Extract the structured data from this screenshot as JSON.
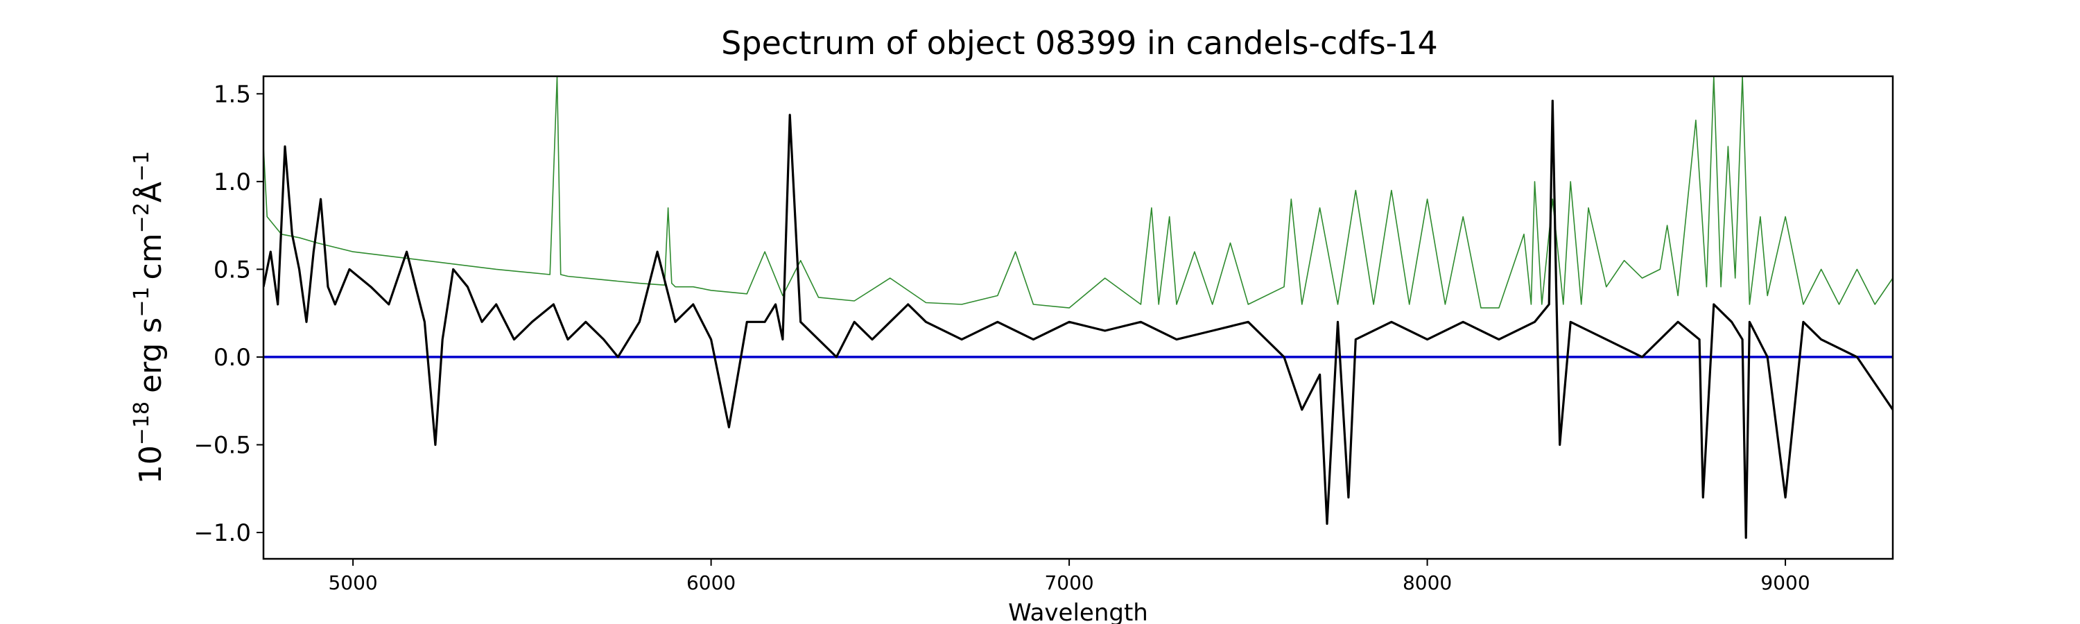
{
  "chart_data": {
    "type": "line",
    "title": "Spectrum of object 08399 in candels-cdfs-14",
    "xlabel": "Wavelength",
    "ylabel_base": "10",
    "ylabel_exp": "−18",
    "ylabel_parts": [
      "erg s",
      "−1",
      "cm",
      "−2",
      "Å",
      "−1"
    ],
    "xlim": [
      4750,
      9300
    ],
    "ylim": [
      -1.15,
      1.6
    ],
    "grid": false,
    "x_ticks": [
      5000,
      6000,
      7000,
      8000,
      9000
    ],
    "x_tick_labels": [
      "5000",
      "6000",
      "7000",
      "8000",
      "9000"
    ],
    "y_ticks": [
      -1.0,
      -0.5,
      0.0,
      0.5,
      1.0,
      1.5
    ],
    "y_tick_labels": [
      "−1.0",
      "−0.5",
      "0.0",
      "0.5",
      "1.0",
      "1.5"
    ],
    "series": [
      {
        "role": "flux",
        "color": "#000000",
        "x": [
          4750,
          4770,
          4790,
          4810,
          4830,
          4850,
          4870,
          4890,
          4910,
          4930,
          4950,
          4990,
          5050,
          5100,
          5150,
          5200,
          5230,
          5250,
          5280,
          5320,
          5360,
          5400,
          5450,
          5500,
          5560,
          5600,
          5650,
          5700,
          5740,
          5800,
          5850,
          5900,
          5950,
          6000,
          6050,
          6100,
          6150,
          6180,
          6200,
          6220,
          6250,
          6300,
          6350,
          6400,
          6450,
          6500,
          6550,
          6600,
          6700,
          6800,
          6900,
          7000,
          7100,
          7200,
          7300,
          7400,
          7500,
          7600,
          7650,
          7700,
          7720,
          7750,
          7780,
          7800,
          7900,
          8000,
          8100,
          8200,
          8300,
          8340,
          8350,
          8360,
          8370,
          8400,
          8500,
          8600,
          8700,
          8760,
          8770,
          8800,
          8850,
          8880,
          8890,
          8900,
          8950,
          9000,
          9050,
          9100,
          9200,
          9300
        ],
        "y": [
          0.4,
          0.6,
          0.3,
          1.2,
          0.7,
          0.5,
          0.2,
          0.6,
          0.9,
          0.4,
          0.3,
          0.5,
          0.4,
          0.3,
          0.6,
          0.2,
          -0.5,
          0.1,
          0.5,
          0.4,
          0.2,
          0.3,
          0.1,
          0.2,
          0.3,
          0.1,
          0.2,
          0.1,
          0.0,
          0.2,
          0.6,
          0.2,
          0.3,
          0.1,
          -0.4,
          0.2,
          0.2,
          0.3,
          0.1,
          1.38,
          0.2,
          0.1,
          0.0,
          0.2,
          0.1,
          0.2,
          0.3,
          0.2,
          0.1,
          0.2,
          0.1,
          0.2,
          0.15,
          0.2,
          0.1,
          0.15,
          0.2,
          0.0,
          -0.3,
          -0.1,
          -0.95,
          0.2,
          -0.8,
          0.1,
          0.2,
          0.1,
          0.2,
          0.1,
          0.2,
          0.3,
          1.46,
          0.4,
          -0.5,
          0.2,
          0.1,
          0.0,
          0.2,
          0.1,
          -0.8,
          0.3,
          0.2,
          0.1,
          -1.03,
          0.2,
          0.0,
          -0.8,
          0.2,
          0.1,
          0.0,
          -0.3
        ]
      },
      {
        "role": "noise",
        "color": "#2e8b2e",
        "x": [
          4750,
          4760,
          4780,
          4800,
          4850,
          4900,
          5000,
          5200,
          5400,
          5550,
          5570,
          5580,
          5600,
          5700,
          5800,
          5870,
          5880,
          5890,
          5900,
          5950,
          6000,
          6100,
          6150,
          6200,
          6250,
          6300,
          6400,
          6500,
          6600,
          6700,
          6800,
          6850,
          6900,
          7000,
          7100,
          7200,
          7230,
          7250,
          7280,
          7300,
          7350,
          7400,
          7450,
          7500,
          7600,
          7620,
          7650,
          7700,
          7750,
          7800,
          7850,
          7900,
          7950,
          8000,
          8050,
          8100,
          8150,
          8200,
          8270,
          8290,
          8300,
          8320,
          8350,
          8380,
          8400,
          8430,
          8450,
          8500,
          8550,
          8600,
          8650,
          8670,
          8700,
          8750,
          8780,
          8800,
          8820,
          8840,
          8860,
          8880,
          8900,
          8930,
          8950,
          9000,
          9050,
          9100,
          9150,
          9200,
          9250,
          9300
        ],
        "y": [
          1.2,
          0.8,
          0.75,
          0.7,
          0.68,
          0.65,
          0.6,
          0.55,
          0.5,
          0.47,
          1.6,
          0.47,
          0.46,
          0.44,
          0.42,
          0.41,
          0.85,
          0.42,
          0.4,
          0.4,
          0.38,
          0.36,
          0.6,
          0.35,
          0.55,
          0.34,
          0.32,
          0.45,
          0.31,
          0.3,
          0.35,
          0.6,
          0.3,
          0.28,
          0.45,
          0.3,
          0.85,
          0.3,
          0.8,
          0.3,
          0.6,
          0.3,
          0.65,
          0.3,
          0.4,
          0.9,
          0.3,
          0.85,
          0.3,
          0.95,
          0.3,
          0.95,
          0.3,
          0.9,
          0.3,
          0.8,
          0.28,
          0.28,
          0.7,
          0.3,
          1.0,
          0.3,
          0.9,
          0.3,
          1.0,
          0.3,
          0.85,
          0.4,
          0.55,
          0.45,
          0.5,
          0.75,
          0.35,
          1.35,
          0.4,
          1.6,
          0.4,
          1.2,
          0.45,
          1.6,
          0.3,
          0.8,
          0.35,
          0.8,
          0.3,
          0.5,
          0.3,
          0.5,
          0.3,
          0.45
        ]
      },
      {
        "role": "zero-line",
        "color": "#0000cc",
        "x": [
          4750,
          9300
        ],
        "y": [
          0.0,
          0.0
        ]
      }
    ]
  }
}
